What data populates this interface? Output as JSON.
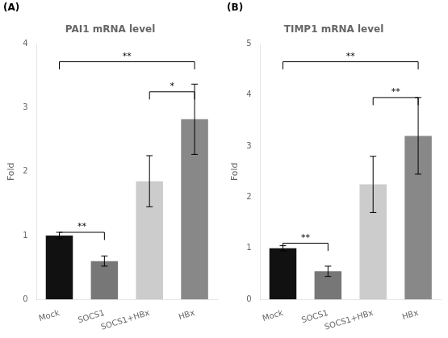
{
  "chart_data": [
    {
      "type": "bar",
      "title": "PAI1 mRNA level",
      "categories": [
        "Mock",
        "SOCS1",
        "SOCS1+HBx",
        "HBx"
      ],
      "values": [
        1.0,
        0.6,
        1.85,
        2.82
      ],
      "errors": [
        0.05,
        0.08,
        0.4,
        0.55
      ],
      "colors": [
        "#111111",
        "#777777",
        "#cccccc",
        "#888888"
      ],
      "ylabel": "Fold",
      "ylim": [
        0,
        4
      ],
      "yticks": [
        0,
        1,
        2,
        3,
        4
      ],
      "grid": false,
      "annotations": [
        {
          "text": "(A)"
        },
        {
          "text": "**",
          "x1": "Mock",
          "x2": "SOCS1",
          "y": 1.05
        },
        {
          "text": "*",
          "x1": "SOCS1+HBx",
          "x2": "HBx",
          "y": 3.25
        },
        {
          "text": "**",
          "x1": "Mock",
          "x2": "HBx",
          "y": 3.72
        }
      ]
    },
    {
      "type": "bar",
      "title": "TIMP1 mRNA level",
      "categories": [
        "Mock",
        "SOCS1",
        "SOCS1+HBx",
        "HBx"
      ],
      "values": [
        1.0,
        0.55,
        2.25,
        3.2
      ],
      "errors": [
        0.05,
        0.1,
        0.55,
        0.75
      ],
      "colors": [
        "#111111",
        "#777777",
        "#cccccc",
        "#888888"
      ],
      "ylabel": "Fold",
      "ylim": [
        0,
        5
      ],
      "yticks": [
        0,
        1,
        2,
        3,
        4,
        5
      ],
      "grid": false,
      "annotations": [
        {
          "text": "(B)"
        },
        {
          "text": "**",
          "x1": "Mock",
          "x2": "SOCS1",
          "y": 1.1
        },
        {
          "text": "**",
          "x1": "SOCS1+HBx",
          "x2": "HBx",
          "y": 3.95
        },
        {
          "text": "**",
          "x1": "Mock",
          "x2": "HBx",
          "y": 4.65
        }
      ]
    }
  ]
}
